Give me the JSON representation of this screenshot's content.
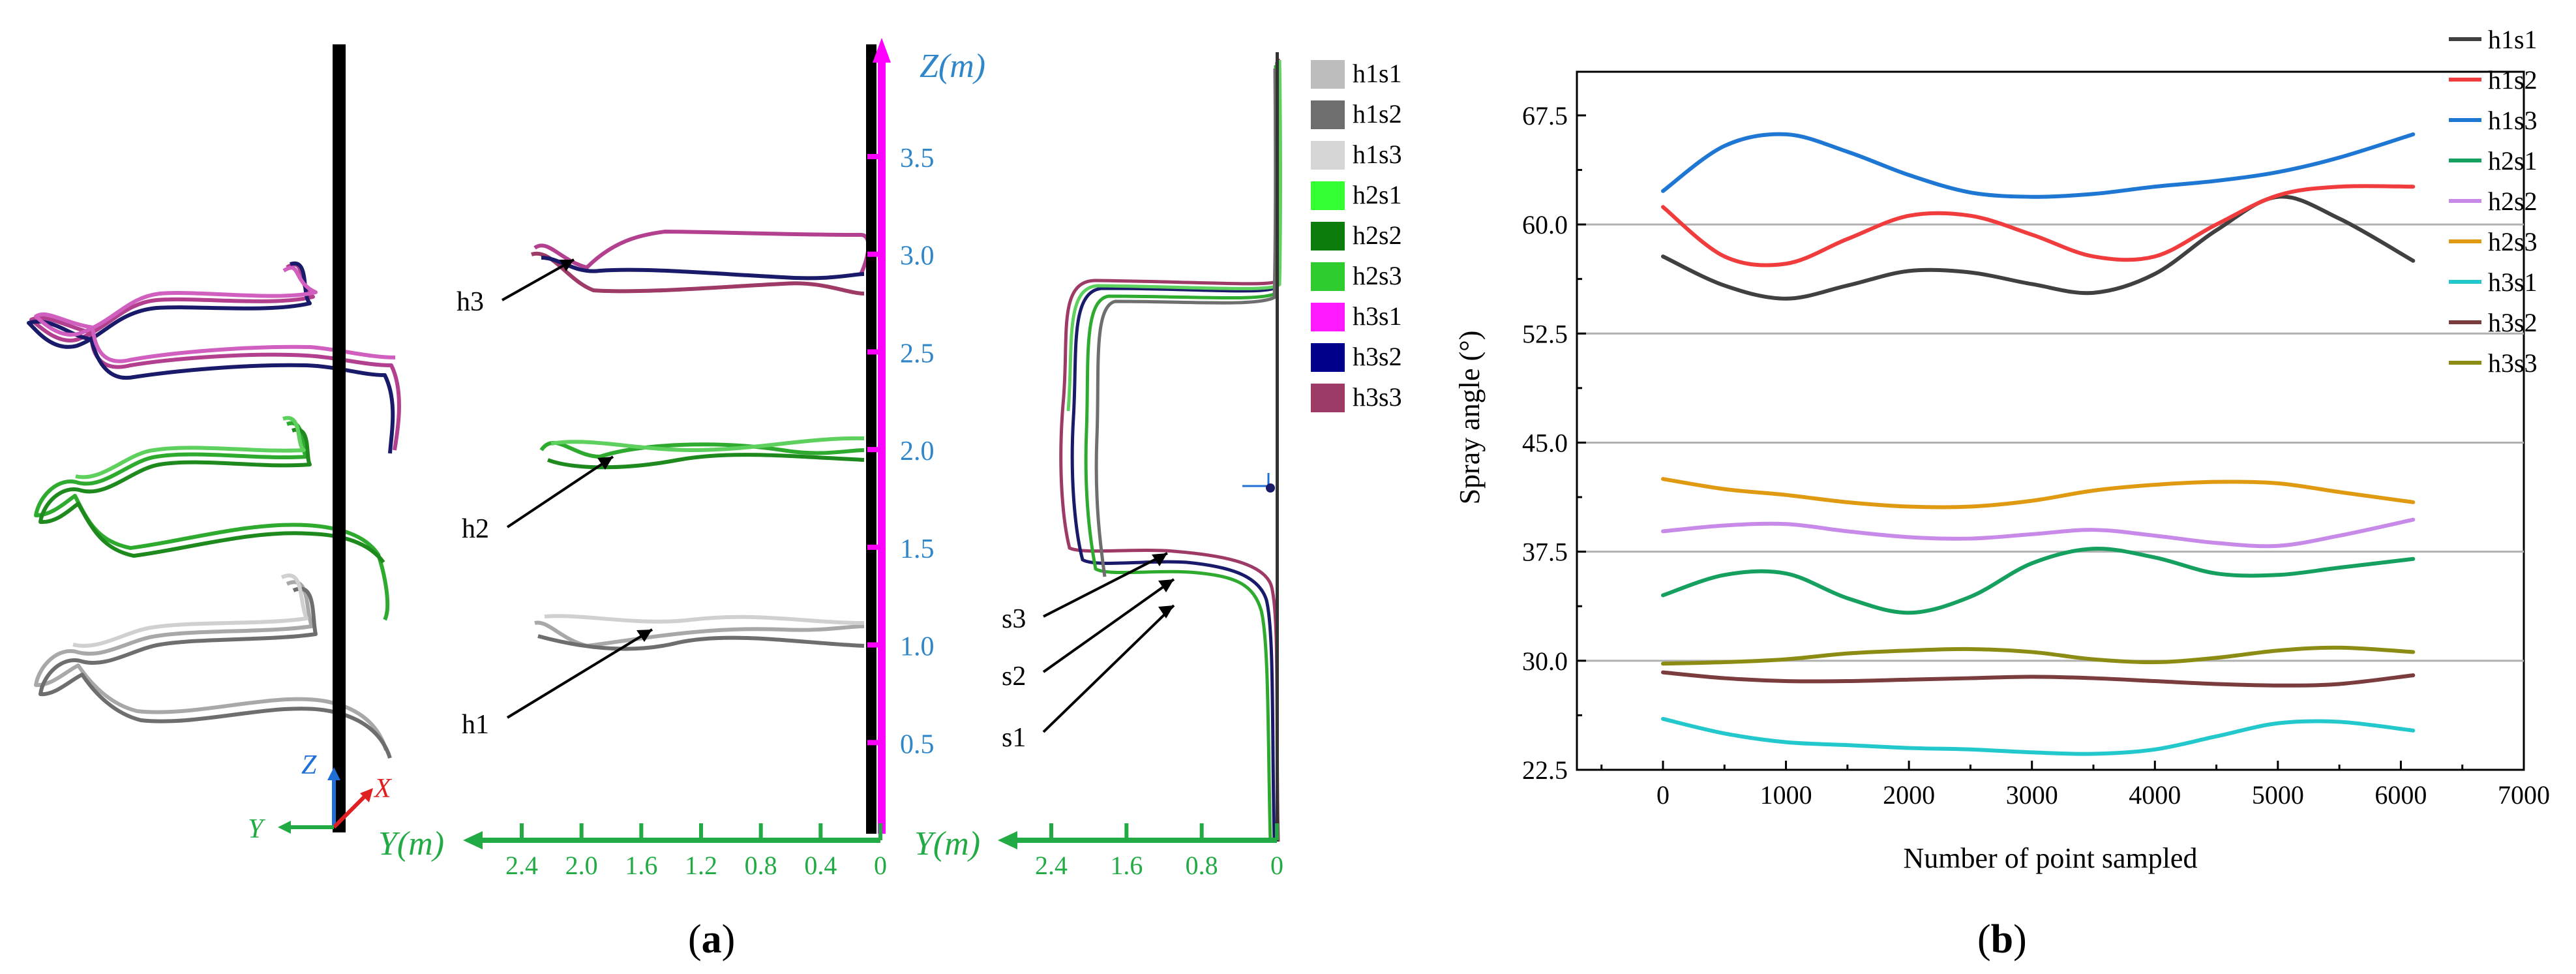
{
  "colors": {
    "tube": "#000000",
    "zaxis": "#ff00ff",
    "yaxis": "#22aa44",
    "axisText": "#2f86c9",
    "axisLabelZ": "#2f86c9",
    "labelY": "#22aa44",
    "triadZ": "#1f6fd6",
    "triadX": "#e02020",
    "triadY": "#22aa44",
    "gridLine": "#b0b0b0",
    "frame": "#000000",
    "h1": "#b8b8b8",
    "h2": "#2eaa2e",
    "h3": "#b3408f"
  },
  "panel_a": {
    "caption": "(a)",
    "caption_letter": "a",
    "z_axis_label": "Z(m)",
    "z_ticks": [
      "0.5",
      "1.0",
      "1.5",
      "2.0",
      "2.5",
      "3.0",
      "3.5"
    ],
    "y_axis_label_mid": "Y(m)",
    "y_axis_label_right": "Y(m)",
    "y_ticks_mid": [
      "2.4",
      "2.0",
      "1.6",
      "1.2",
      "0.8",
      "0.4",
      "0"
    ],
    "y_ticks_right": [
      "2.4",
      "1.6",
      "0.8",
      "0"
    ],
    "triad": {
      "z": "Z",
      "x": "X",
      "y": "Y"
    },
    "height_labels": [
      "h1",
      "h2",
      "h3"
    ],
    "speed_labels": [
      "s1",
      "s2",
      "s3"
    ],
    "legend": [
      {
        "label": "h1s1",
        "color": "#bdbdbd"
      },
      {
        "label": "h1s2",
        "color": "#6e6e6e"
      },
      {
        "label": "h1s3",
        "color": "#d6d6d6"
      },
      {
        "label": "h2s1",
        "color": "#33ff33"
      },
      {
        "label": "h2s2",
        "color": "#0c7d0c"
      },
      {
        "label": "h2s3",
        "color": "#2ecc2e"
      },
      {
        "label": "h3s1",
        "color": "#ff19ff"
      },
      {
        "label": "h3s2",
        "color": "#00008b"
      },
      {
        "label": "h3s3",
        "color": "#9e3a66"
      }
    ]
  },
  "panel_b": {
    "caption": "(b)",
    "caption_letter": "b"
  },
  "chart_data": {
    "type": "line",
    "title": "",
    "xlabel": "Number of point sampled",
    "ylabel": "Spray angle (°)",
    "xlim": [
      -700,
      7000
    ],
    "ylim": [
      22.5,
      70.5
    ],
    "x_ticks": [
      0,
      1000,
      2000,
      3000,
      4000,
      5000,
      6000,
      7000
    ],
    "y_ticks": [
      22.5,
      30.0,
      37.5,
      45.0,
      52.5,
      60.0,
      67.5
    ],
    "y_tick_labels": [
      "22.5",
      "30.0",
      "37.5",
      "45.0",
      "52.5",
      "60.0",
      "67.5"
    ],
    "grid_lines_y": [
      30.0,
      37.5,
      45.0,
      52.5,
      60.0
    ],
    "legend_position": "right",
    "x": [
      0,
      500,
      1000,
      1500,
      2000,
      2500,
      3000,
      3500,
      4000,
      4500,
      5000,
      5500,
      6100
    ],
    "series": [
      {
        "name": "h1s1",
        "color": "#404040",
        "values": [
          57.8,
          55.8,
          54.9,
          55.8,
          56.8,
          56.7,
          55.9,
          55.3,
          56.6,
          59.6,
          61.9,
          60.4,
          57.5
        ]
      },
      {
        "name": "h1s2",
        "color": "#f03c3c",
        "values": [
          61.2,
          57.8,
          57.3,
          59.0,
          60.6,
          60.6,
          59.3,
          57.8,
          57.8,
          60.0,
          62.0,
          62.6,
          62.6
        ]
      },
      {
        "name": "h1s3",
        "color": "#1f77d4",
        "values": [
          62.3,
          65.4,
          66.2,
          65.0,
          63.4,
          62.2,
          61.9,
          62.1,
          62.6,
          63.0,
          63.6,
          64.6,
          66.2
        ]
      },
      {
        "name": "h2s1",
        "color": "#16a060",
        "values": [
          34.5,
          35.9,
          36.0,
          34.3,
          33.3,
          34.4,
          36.7,
          37.7,
          37.1,
          36.0,
          35.9,
          36.4,
          37.0
        ]
      },
      {
        "name": "h2s2",
        "color": "#c78ae8",
        "values": [
          38.9,
          39.3,
          39.4,
          38.9,
          38.5,
          38.4,
          38.7,
          39.0,
          38.6,
          38.1,
          37.9,
          38.6,
          39.7
        ]
      },
      {
        "name": "h2s3",
        "color": "#e09a12",
        "values": [
          42.5,
          41.8,
          41.4,
          40.9,
          40.6,
          40.6,
          41.0,
          41.7,
          42.1,
          42.3,
          42.2,
          41.6,
          40.9
        ]
      },
      {
        "name": "h3s1",
        "color": "#22c8cc",
        "values": [
          26.0,
          25.0,
          24.4,
          24.2,
          24.0,
          23.9,
          23.7,
          23.6,
          23.9,
          24.8,
          25.7,
          25.8,
          25.2
        ]
      },
      {
        "name": "h3s2",
        "color": "#7a3c3c",
        "values": [
          29.2,
          28.8,
          28.6,
          28.6,
          28.7,
          28.8,
          28.9,
          28.8,
          28.6,
          28.4,
          28.3,
          28.4,
          29.0
        ]
      },
      {
        "name": "h3s3",
        "color": "#8c8c14",
        "values": [
          29.8,
          29.9,
          30.1,
          30.5,
          30.7,
          30.8,
          30.6,
          30.1,
          29.9,
          30.2,
          30.7,
          30.9,
          30.6
        ]
      }
    ]
  }
}
